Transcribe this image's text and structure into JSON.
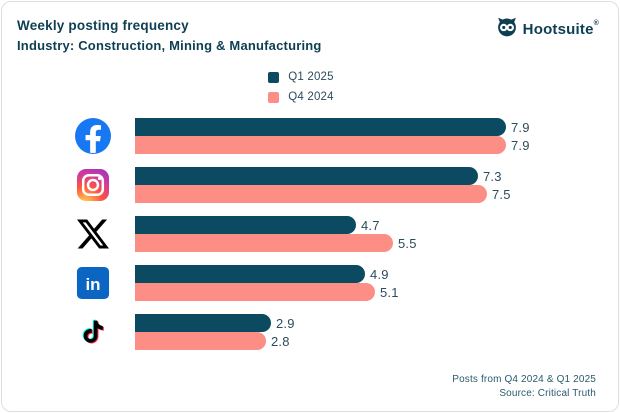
{
  "header": {
    "title": "Weekly posting frequency",
    "subtitle": "Industry: Construction, Mining & Manufacturing",
    "brand": "Hootsuite",
    "brand_mark": "®"
  },
  "chart_data": {
    "type": "bar",
    "orientation": "horizontal",
    "title": "Weekly posting frequency",
    "subtitle": "Industry: Construction, Mining & Manufacturing",
    "categories": [
      "Facebook",
      "Instagram",
      "X",
      "LinkedIn",
      "TikTok"
    ],
    "category_icons": [
      "facebook-icon",
      "instagram-icon",
      "x-icon",
      "linkedin-icon",
      "tiktok-icon"
    ],
    "series": [
      {
        "name": "Q1 2025",
        "color": "#0b4a60",
        "values": [
          7.9,
          7.3,
          4.7,
          4.9,
          2.9
        ]
      },
      {
        "name": "Q4 2024",
        "color": "#fd8e86",
        "values": [
          7.9,
          7.5,
          5.5,
          5.1,
          2.8
        ]
      }
    ],
    "xlim": [
      0,
      7.9
    ],
    "value_labels": true,
    "grid": false,
    "legend_position": "top-center"
  },
  "footer": {
    "line1": "Posts from Q4 2024 & Q1 2025",
    "line2": "Source: Critical Truth"
  },
  "colors": {
    "q1_2025": "#0b4a60",
    "q4_2024": "#fd8e86",
    "text_dark": "#0e3e52",
    "text_muted": "#2c4c5c",
    "facebook_blue": "#1877f2",
    "linkedin_blue": "#0a66c2",
    "tiktok_cyan": "#25f4ee",
    "tiktok_red": "#fe2c55",
    "card_border": "#dcdfe2"
  }
}
